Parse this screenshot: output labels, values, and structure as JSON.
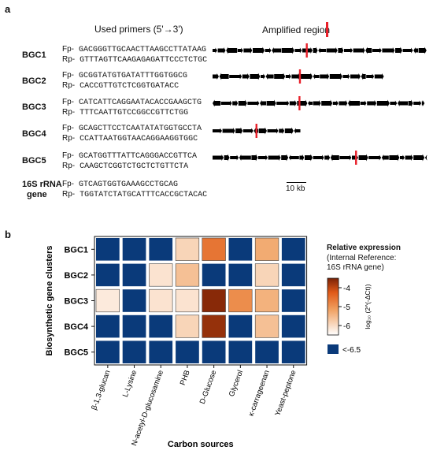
{
  "panel_a": {
    "label": "a",
    "primers_header": "Used primers (5'→3')",
    "region_header": "Amplified region",
    "scale_bar_label": "10 kb",
    "rows": [
      {
        "name": "BGC1",
        "fp_label": "Fp-",
        "fp": "GACGGGTTGCAACTTAAGCCTTATAAG",
        "rp_label": "Rp-",
        "rp": "GTTTAGTTCAAGAGAGATTCCCTCTGC",
        "length_frac": 1.0,
        "marker_frac": 0.44
      },
      {
        "name": "BGC2",
        "fp_label": "Fp-",
        "fp": "GCGGTATGTGATATTTGGTGGCG",
        "rp_label": "Rp-",
        "rp": "CACCGTTGTCTCGGTGATACC",
        "length_frac": 0.8,
        "marker_frac": 0.51
      },
      {
        "name": "BGC3",
        "fp_label": "Fp-",
        "fp": "CATCATTCAGGAATACACCGAAGCTG",
        "rp_label": "Rp-",
        "rp": "TTTCAATTGTCCGGCCGTTCTGG",
        "length_frac": 0.99,
        "marker_frac": 0.41
      },
      {
        "name": "BGC4",
        "fp_label": "Fp-",
        "fp": "GCAGCTTCCTCAATATATGGTGCCTA",
        "rp_label": "Rp-",
        "rp": "CCATTAATGGTAACAGGAAGGTGGC",
        "length_frac": 0.41,
        "marker_frac": 0.5
      },
      {
        "name": "BGC5",
        "fp_label": "Fp-",
        "fp": "GCATGGTTTATTCAGGGACCGTTCA",
        "rp_label": "Rp-",
        "rp": "CAAGCTCGGTCTGCTCTGTTCTA",
        "length_frac": 1.0,
        "marker_frac": 0.67
      },
      {
        "name_lines": [
          "16S rRNA",
          "gene"
        ],
        "fp_label": "Fp-",
        "fp": "GTCAGTGGTGAAAGCCTGCAG",
        "rp_label": "Rp-",
        "rp": "TGGTATCTATGCATTTCACCGCTACAC"
      }
    ],
    "colors": {
      "gene": "#000000",
      "marker": "#e8202a"
    }
  },
  "panel_b": {
    "label": "b",
    "chart_data": {
      "type": "heatmap",
      "xlabel": "Carbon sources",
      "ylabel": "Biosynthetic gene clusters",
      "rows": [
        "BGC1",
        "BGC2",
        "BGC3",
        "BGC4",
        "BGC5"
      ],
      "columns": [
        "β-1,3-glucan",
        "L-Lysine",
        "N-acetyl-D-glucosamine",
        "PHB",
        "D-Glucose",
        "Glycerol",
        "κ-carrageenan",
        "Yeast-peptone"
      ],
      "values": [
        [
          null,
          null,
          null,
          -5.9,
          -4.6,
          null,
          -5.3,
          null
        ],
        [
          null,
          null,
          -6.1,
          -5.6,
          null,
          null,
          -5.9,
          null
        ],
        [
          -6.2,
          null,
          -6.1,
          -6.1,
          -3.6,
          -4.9,
          -5.4,
          null
        ],
        [
          null,
          null,
          null,
          -5.9,
          -3.7,
          null,
          -5.6,
          null
        ],
        [
          null,
          null,
          null,
          null,
          null,
          null,
          null,
          null
        ]
      ],
      "colorbar": {
        "title": "Relative expression",
        "subtitle_lines": [
          "(Internal Reference:",
          "16S rRNA gene)"
        ],
        "axis_label": "log₁₀ (2^(-ΔCt))",
        "ticks": [
          -4,
          -5,
          -6
        ],
        "range": [
          -6.5,
          -3.5
        ],
        "below_label": "<-6.5",
        "below_color": "#0a3a7a"
      }
    }
  }
}
